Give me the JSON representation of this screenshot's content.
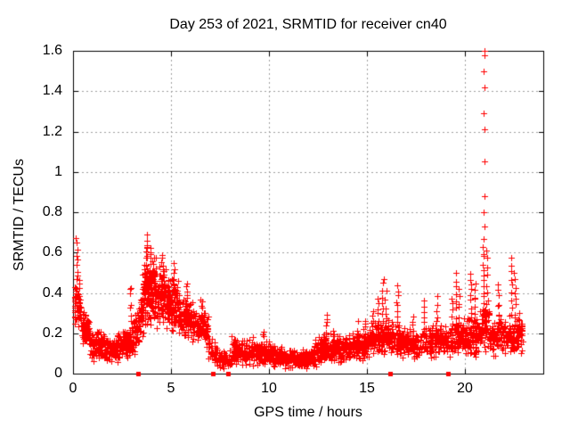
{
  "chart_data": {
    "type": "scatter",
    "title": "Day 253 of 2021, SRMTID for receiver cn40",
    "xlabel": "GPS time / hours",
    "ylabel": "SRMTID / TECUs",
    "xlim": [
      0,
      24
    ],
    "ylim": [
      0,
      1.6
    ],
    "xtick_values": [
      0,
      5,
      10,
      15,
      20
    ],
    "xtick_labels": [
      "0",
      "5",
      "10",
      "15",
      "20"
    ],
    "ytick_values": [
      0,
      0.2,
      0.4,
      0.6,
      0.8,
      1,
      1.2,
      1.4,
      1.6
    ],
    "ytick_labels": [
      "0",
      "0.2",
      "0.4",
      "0.6",
      "0.8",
      "1",
      "1.2",
      "1.4",
      "1.6"
    ],
    "grid": true,
    "legend": null,
    "marker": "plus",
    "zero_marker": "filled-square",
    "colors": {
      "points": "#ff0000",
      "grid": "#a0a0a0",
      "axis": "#000000",
      "text": "#000000",
      "background": "#ffffff"
    },
    "seed": 1253,
    "band_segments_format": "[t_start_h, t_end_h, y_start_TECU, y_end_TECU, y_spread, n_points]",
    "spikes_format": "[t_center_h, y_min_TECU, y_max_TECU, n_points]",
    "series": [
      {
        "name": "SRMTID",
        "band_segments": [
          [
            0.07,
            0.35,
            0.36,
            0.3,
            0.09,
            50
          ],
          [
            0.35,
            0.95,
            0.27,
            0.17,
            0.07,
            75
          ],
          [
            0.95,
            2.3,
            0.14,
            0.12,
            0.055,
            175
          ],
          [
            2.3,
            3.1,
            0.13,
            0.17,
            0.06,
            115
          ],
          [
            3.1,
            3.55,
            0.19,
            0.3,
            0.09,
            75
          ],
          [
            3.55,
            4.15,
            0.4,
            0.42,
            0.13,
            130
          ],
          [
            4.15,
            4.9,
            0.4,
            0.36,
            0.11,
            120
          ],
          [
            4.9,
            5.4,
            0.36,
            0.31,
            0.1,
            85
          ],
          [
            5.4,
            6.1,
            0.28,
            0.25,
            0.08,
            95
          ],
          [
            6.1,
            6.9,
            0.24,
            0.22,
            0.06,
            95
          ],
          [
            6.9,
            7.35,
            0.14,
            0.08,
            0.05,
            45
          ],
          [
            7.35,
            8.1,
            0.07,
            0.07,
            0.035,
            55
          ],
          [
            8.1,
            9.3,
            0.12,
            0.11,
            0.05,
            150
          ],
          [
            9.3,
            10.2,
            0.1,
            0.1,
            0.045,
            120
          ],
          [
            10.2,
            11.3,
            0.085,
            0.075,
            0.04,
            140
          ],
          [
            11.3,
            12.3,
            0.07,
            0.08,
            0.035,
            140
          ],
          [
            12.3,
            13.0,
            0.1,
            0.14,
            0.055,
            110
          ],
          [
            13.0,
            14.1,
            0.12,
            0.12,
            0.05,
            140
          ],
          [
            14.1,
            15.1,
            0.13,
            0.15,
            0.055,
            120
          ],
          [
            15.1,
            16.0,
            0.16,
            0.18,
            0.065,
            110
          ],
          [
            16.0,
            17.0,
            0.18,
            0.16,
            0.065,
            120
          ],
          [
            17.0,
            18.3,
            0.15,
            0.16,
            0.06,
            140
          ],
          [
            18.3,
            19.2,
            0.16,
            0.17,
            0.06,
            100
          ],
          [
            19.2,
            20.1,
            0.17,
            0.19,
            0.07,
            100
          ],
          [
            20.1,
            20.85,
            0.19,
            0.21,
            0.075,
            95
          ],
          [
            20.85,
            21.25,
            0.23,
            0.25,
            0.09,
            60
          ],
          [
            21.25,
            22.1,
            0.19,
            0.19,
            0.07,
            90
          ],
          [
            22.1,
            22.95,
            0.2,
            0.18,
            0.07,
            95
          ]
        ],
        "spikes": [
          [
            0.18,
            0.38,
            0.67,
            12
          ],
          [
            0.3,
            0.3,
            0.47,
            8
          ],
          [
            2.95,
            0.25,
            0.42,
            6
          ],
          [
            3.75,
            0.48,
            0.7,
            14
          ],
          [
            3.95,
            0.45,
            0.62,
            10
          ],
          [
            4.55,
            0.4,
            0.6,
            10
          ],
          [
            5.15,
            0.35,
            0.55,
            8
          ],
          [
            5.8,
            0.3,
            0.45,
            8
          ],
          [
            6.55,
            0.26,
            0.36,
            8
          ],
          [
            9.7,
            0.12,
            0.21,
            6
          ],
          [
            12.92,
            0.14,
            0.27,
            8
          ],
          [
            13.3,
            0.13,
            0.22,
            6
          ],
          [
            14.9,
            0.15,
            0.27,
            6
          ],
          [
            15.3,
            0.18,
            0.3,
            6
          ],
          [
            15.55,
            0.2,
            0.38,
            7
          ],
          [
            15.78,
            0.22,
            0.45,
            8
          ],
          [
            15.95,
            0.2,
            0.42,
            6
          ],
          [
            16.55,
            0.22,
            0.44,
            9
          ],
          [
            17.35,
            0.18,
            0.28,
            6
          ],
          [
            17.9,
            0.2,
            0.37,
            7
          ],
          [
            18.55,
            0.2,
            0.38,
            7
          ],
          [
            19.35,
            0.22,
            0.38,
            6
          ],
          [
            19.55,
            0.25,
            0.49,
            8
          ],
          [
            19.7,
            0.22,
            0.42,
            7
          ],
          [
            20.3,
            0.28,
            0.5,
            9
          ],
          [
            20.5,
            0.25,
            0.44,
            8
          ],
          [
            20.95,
            0.35,
            0.66,
            12
          ],
          [
            21.12,
            0.3,
            0.62,
            8
          ],
          [
            21.7,
            0.25,
            0.43,
            8
          ],
          [
            22.38,
            0.3,
            0.57,
            9
          ],
          [
            22.55,
            0.27,
            0.5,
            8
          ],
          [
            22.75,
            0.15,
            0.3,
            6
          ]
        ],
        "outlier_points": [
          [
            20.98,
            1.6
          ],
          [
            21.0,
            1.58
          ],
          [
            20.97,
            1.5
          ],
          [
            20.99,
            1.42
          ],
          [
            20.97,
            1.29
          ],
          [
            20.99,
            1.21
          ],
          [
            20.98,
            1.05
          ],
          [
            20.99,
            0.88
          ],
          [
            20.97,
            0.8
          ],
          [
            20.98,
            0.73
          ],
          [
            15.86,
            0.47
          ],
          [
            14.55,
            0.26
          ],
          [
            2.9,
            0.42
          ],
          [
            12.95,
            0.29
          ]
        ],
        "zero_marker_hours": [
          3.31,
          7.14,
          7.9,
          16.18,
          19.12
        ]
      }
    ]
  }
}
